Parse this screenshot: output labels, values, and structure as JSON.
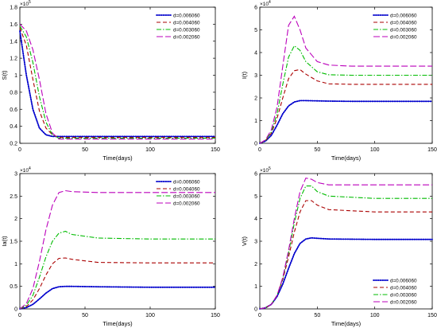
{
  "chart_data": [
    {
      "type": "line",
      "xlabel": "Time(days)",
      "ylabel": "S(t)",
      "exponent": "×10",
      "exponent_power": "5",
      "xlim": [
        0,
        150
      ],
      "ylim": [
        0.2,
        1.8
      ],
      "xticks": [
        0,
        50,
        100,
        150
      ],
      "yticks": [
        0.2,
        0.4,
        0.6,
        0.8,
        1,
        1.2,
        1.4,
        1.6,
        1.8
      ],
      "legend_position": "top-right",
      "series": [
        {
          "name": "d=0.006060",
          "color": "#0000cc",
          "dash": "dot",
          "x": [
            0,
            5,
            10,
            15,
            20,
            25,
            30,
            40,
            60,
            100,
            150
          ],
          "values": [
            1.52,
            1.0,
            0.6,
            0.38,
            0.3,
            0.28,
            0.28,
            0.28,
            0.28,
            0.28,
            0.28
          ]
        },
        {
          "name": "d=0.004060",
          "color": "#aa0000",
          "dash": "dash",
          "x": [
            0,
            5,
            10,
            15,
            20,
            25,
            30,
            40,
            60,
            100,
            150
          ],
          "values": [
            1.56,
            1.35,
            0.95,
            0.58,
            0.38,
            0.3,
            0.27,
            0.27,
            0.27,
            0.27,
            0.27
          ]
        },
        {
          "name": "d=0.003060",
          "color": "#00bb00",
          "dash": "dashdot",
          "x": [
            0,
            5,
            10,
            15,
            20,
            25,
            30,
            40,
            60,
            100,
            150
          ],
          "values": [
            1.58,
            1.45,
            1.15,
            0.75,
            0.45,
            0.3,
            0.26,
            0.26,
            0.26,
            0.26,
            0.26
          ]
        },
        {
          "name": "d=0.002060",
          "color": "#bb00bb",
          "dash": "longdash",
          "x": [
            0,
            5,
            10,
            15,
            20,
            25,
            30,
            40,
            60,
            100,
            150
          ],
          "values": [
            1.6,
            1.52,
            1.3,
            0.95,
            0.55,
            0.32,
            0.25,
            0.25,
            0.25,
            0.25,
            0.25
          ]
        }
      ]
    },
    {
      "type": "line",
      "xlabel": "Time(days)",
      "ylabel": "I(t)",
      "exponent": "×10",
      "exponent_power": "4",
      "xlim": [
        0,
        150
      ],
      "ylim": [
        0,
        6
      ],
      "xticks": [
        0,
        50,
        100,
        150
      ],
      "yticks": [
        0,
        1,
        2,
        3,
        4,
        5,
        6
      ],
      "legend_position": "top-right",
      "series": [
        {
          "name": "d=0.006060",
          "color": "#0000cc",
          "dash": "dot",
          "x": [
            0,
            5,
            10,
            15,
            20,
            25,
            30,
            35,
            40,
            50,
            60,
            80,
            100,
            150
          ],
          "values": [
            0,
            0.1,
            0.35,
            0.8,
            1.3,
            1.65,
            1.82,
            1.88,
            1.88,
            1.87,
            1.86,
            1.85,
            1.85,
            1.85
          ]
        },
        {
          "name": "d=0.004060",
          "color": "#aa0000",
          "dash": "dash",
          "x": [
            0,
            5,
            10,
            15,
            20,
            25,
            30,
            35,
            40,
            50,
            60,
            80,
            100,
            150
          ],
          "values": [
            0,
            0.12,
            0.45,
            1.1,
            2.0,
            2.85,
            3.2,
            3.25,
            3.05,
            2.75,
            2.62,
            2.6,
            2.6,
            2.6
          ]
        },
        {
          "name": "d=0.003060",
          "color": "#00bb00",
          "dash": "dashdot",
          "x": [
            0,
            5,
            10,
            15,
            20,
            25,
            30,
            35,
            40,
            50,
            60,
            80,
            100,
            150
          ],
          "values": [
            0,
            0.13,
            0.5,
            1.3,
            2.6,
            3.8,
            4.3,
            4.1,
            3.6,
            3.15,
            3.02,
            3.0,
            3.0,
            3.0
          ]
        },
        {
          "name": "d=0.002060",
          "color": "#bb00bb",
          "dash": "longdash",
          "x": [
            0,
            5,
            10,
            15,
            20,
            25,
            30,
            35,
            40,
            50,
            60,
            80,
            100,
            150
          ],
          "values": [
            0,
            0.15,
            0.6,
            1.6,
            3.4,
            5.2,
            5.6,
            5.0,
            4.2,
            3.6,
            3.45,
            3.4,
            3.4,
            3.4
          ]
        }
      ]
    },
    {
      "type": "line",
      "xlabel": "Time(days)",
      "ylabel": "Ia(t)",
      "exponent": "×10",
      "exponent_power": "4",
      "xlim": [
        0,
        150
      ],
      "ylim": [
        0,
        3
      ],
      "xticks": [
        0,
        50,
        100,
        150
      ],
      "yticks": [
        0,
        0.5,
        1,
        1.5,
        2,
        2.5,
        3
      ],
      "legend_position": "top-right",
      "series": [
        {
          "name": "d=0.006060",
          "color": "#0000cc",
          "dash": "dot",
          "x": [
            0,
            5,
            10,
            15,
            20,
            25,
            30,
            35,
            40,
            60,
            100,
            150
          ],
          "values": [
            0,
            0.03,
            0.1,
            0.22,
            0.35,
            0.45,
            0.49,
            0.5,
            0.5,
            0.49,
            0.48,
            0.48
          ]
        },
        {
          "name": "d=0.004060",
          "color": "#aa0000",
          "dash": "dash",
          "x": [
            0,
            5,
            10,
            15,
            20,
            25,
            30,
            35,
            40,
            60,
            100,
            150
          ],
          "values": [
            0,
            0.05,
            0.2,
            0.45,
            0.75,
            1.0,
            1.12,
            1.13,
            1.1,
            1.03,
            1.02,
            1.02
          ]
        },
        {
          "name": "d=0.003060",
          "color": "#00bb00",
          "dash": "dashdot",
          "x": [
            0,
            5,
            10,
            15,
            20,
            25,
            30,
            35,
            40,
            60,
            100,
            150
          ],
          "values": [
            0,
            0.08,
            0.3,
            0.7,
            1.15,
            1.5,
            1.68,
            1.72,
            1.65,
            1.57,
            1.55,
            1.55
          ]
        },
        {
          "name": "d=0.002060",
          "color": "#bb00bb",
          "dash": "longdash",
          "x": [
            0,
            5,
            10,
            15,
            20,
            25,
            30,
            35,
            40,
            60,
            100,
            150
          ],
          "values": [
            0,
            0.12,
            0.45,
            1.05,
            1.75,
            2.3,
            2.58,
            2.62,
            2.6,
            2.58,
            2.58,
            2.58
          ]
        }
      ]
    },
    {
      "type": "line",
      "xlabel": "Time(days)",
      "ylabel": "V(t)",
      "exponent": "×10",
      "exponent_power": "5",
      "xlim": [
        0,
        150
      ],
      "ylim": [
        0,
        6
      ],
      "xticks": [
        0,
        50,
        100,
        150
      ],
      "yticks": [
        0,
        1,
        2,
        3,
        4,
        5,
        6
      ],
      "legend_position": "bottom-right",
      "series": [
        {
          "name": "d=0.006060",
          "color": "#0000cc",
          "dash": "dot",
          "x": [
            0,
            5,
            10,
            15,
            20,
            25,
            30,
            35,
            40,
            45,
            50,
            60,
            100,
            150
          ],
          "values": [
            0,
            0.05,
            0.2,
            0.55,
            1.1,
            1.8,
            2.45,
            2.9,
            3.1,
            3.15,
            3.13,
            3.1,
            3.08,
            3.08
          ]
        },
        {
          "name": "d=0.004060",
          "color": "#aa0000",
          "dash": "dash",
          "x": [
            0,
            5,
            10,
            15,
            20,
            25,
            30,
            35,
            40,
            45,
            50,
            60,
            100,
            150
          ],
          "values": [
            0,
            0.05,
            0.2,
            0.6,
            1.3,
            2.3,
            3.4,
            4.3,
            4.8,
            4.8,
            4.6,
            4.4,
            4.3,
            4.3
          ]
        },
        {
          "name": "d=0.003060",
          "color": "#00bb00",
          "dash": "dashdot",
          "x": [
            0,
            5,
            10,
            15,
            20,
            25,
            30,
            35,
            40,
            45,
            50,
            60,
            100,
            150
          ],
          "values": [
            0,
            0.05,
            0.2,
            0.6,
            1.35,
            2.5,
            3.8,
            4.9,
            5.45,
            5.45,
            5.2,
            5.0,
            4.9,
            4.9
          ]
        },
        {
          "name": "d=0.002060",
          "color": "#bb00bb",
          "dash": "longdash",
          "x": [
            0,
            5,
            10,
            15,
            20,
            25,
            30,
            35,
            40,
            45,
            50,
            60,
            100,
            150
          ],
          "values": [
            0,
            0.05,
            0.2,
            0.6,
            1.4,
            2.6,
            4.0,
            5.2,
            5.8,
            5.75,
            5.6,
            5.5,
            5.5,
            5.5
          ]
        }
      ]
    }
  ]
}
